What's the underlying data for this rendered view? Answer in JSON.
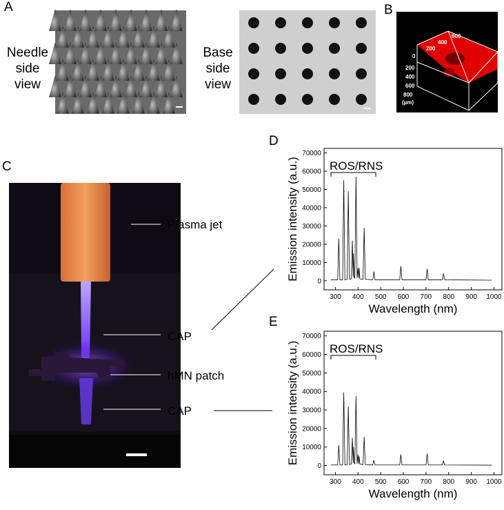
{
  "figure": {
    "panel_labels": [
      "A",
      "B",
      "C",
      "D",
      "E"
    ],
    "panel_a": {
      "needle_label": [
        "Needle",
        "side",
        "view"
      ],
      "base_label": [
        "Base",
        "side",
        "view"
      ]
    },
    "panel_b": {
      "axis_labels": [
        "600",
        "400",
        "200",
        "0",
        "200",
        "400",
        "600",
        "800",
        "(µm)"
      ]
    },
    "panel_c": {
      "annotations": [
        "Plasma jet",
        "CAP",
        "hMN patch",
        "CAP"
      ]
    }
  },
  "chart_data": [
    {
      "type": "line",
      "annotation": "ROS/RNS",
      "xlabel": "Wavelength (nm)",
      "ylabel": "Emission intensity (a.u.)",
      "xlim": [
        250,
        1035
      ],
      "ylim": [
        -5000,
        72500
      ],
      "xticks": [
        300,
        400,
        500,
        600,
        700,
        800,
        900,
        1000
      ],
      "yticks": [
        0,
        10000,
        20000,
        30000,
        40000,
        50000,
        60000,
        70000
      ],
      "series": [
        {
          "color": "#000000",
          "x": [
            280,
            310,
            315,
            320,
            332,
            337,
            342,
            352,
            357,
            362,
            370,
            375,
            378,
            380,
            383,
            386,
            391,
            396,
            400,
            403,
            405,
            408,
            422,
            427,
            432,
            465,
            470,
            475,
            584,
            589,
            594,
            700,
            705,
            710,
            772,
            777,
            782,
            990
          ],
          "values": [
            500,
            500,
            23000,
            500,
            500,
            55000,
            500,
            800,
            49000,
            800,
            1000,
            22000,
            2000,
            15000,
            2000,
            1500,
            57000,
            1500,
            7000,
            1500,
            7000,
            1000,
            800,
            29000,
            800,
            500,
            5000,
            500,
            500,
            8000,
            500,
            500,
            6500,
            500,
            500,
            4000,
            500,
            300
          ]
        }
      ]
    },
    {
      "type": "line",
      "annotation": "ROS/RNS",
      "xlabel": "Wavelength (nm)",
      "ylabel": "Emission intensity (a.u.)",
      "xlim": [
        250,
        1035
      ],
      "ylim": [
        -5000,
        72500
      ],
      "xticks": [
        300,
        400,
        500,
        600,
        700,
        800,
        900,
        1000
      ],
      "yticks": [
        0,
        10000,
        20000,
        30000,
        40000,
        50000,
        60000,
        70000
      ],
      "series": [
        {
          "color": "#000000",
          "x": [
            280,
            310,
            315,
            320,
            332,
            337,
            342,
            352,
            357,
            362,
            370,
            375,
            378,
            380,
            383,
            386,
            391,
            396,
            400,
            403,
            405,
            408,
            422,
            427,
            432,
            465,
            470,
            475,
            584,
            589,
            594,
            700,
            705,
            710,
            772,
            777,
            782,
            990
          ],
          "values": [
            300,
            300,
            11000,
            300,
            300,
            39500,
            300,
            500,
            32000,
            500,
            800,
            15000,
            1500,
            10000,
            1500,
            1000,
            37500,
            1000,
            6000,
            1000,
            5000,
            800,
            500,
            15500,
            500,
            300,
            3000,
            300,
            300,
            6000,
            300,
            300,
            6500,
            300,
            300,
            2500,
            300,
            200
          ]
        }
      ]
    }
  ]
}
